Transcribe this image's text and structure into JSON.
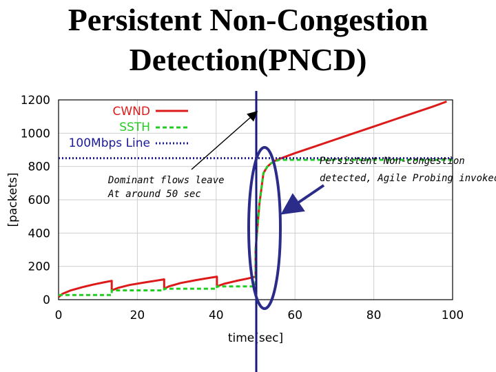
{
  "slide": {
    "title_line1": "Persistent Non-Congestion",
    "title_line2": "Detection(PNCD)"
  },
  "chart_data": {
    "type": "line",
    "xlabel": "time[sec]",
    "ylabel": "[packets]",
    "xlim": [
      0,
      100
    ],
    "ylim": [
      0,
      1200
    ],
    "xticks": [
      0,
      20,
      40,
      60,
      80,
      100
    ],
    "yticks": [
      0,
      200,
      400,
      600,
      800,
      1000,
      1200
    ],
    "grid": true,
    "legend_position": "top-right",
    "series": [
      {
        "name": "CWND",
        "color": "#dd1a1a",
        "x": [
          0,
          1,
          3,
          6,
          9,
          11.5,
          13.5,
          13.5,
          15,
          18,
          22,
          25,
          26.8,
          26.8,
          28,
          31,
          35,
          38,
          40.2,
          40.2,
          42,
          45,
          48,
          50,
          50,
          51,
          52,
          53,
          54,
          55,
          56,
          60,
          65,
          70,
          75,
          80,
          85,
          90,
          95,
          98.5
        ],
        "y": [
          15,
          35,
          55,
          75,
          92,
          104,
          113,
          56,
          70,
          88,
          104,
          115,
          122,
          66,
          80,
          100,
          118,
          130,
          138,
          80,
          95,
          112,
          127,
          138,
          300,
          580,
          760,
          800,
          820,
          835,
          845,
          880,
          920,
          960,
          1000,
          1040,
          1080,
          1120,
          1160,
          1190
        ]
      },
      {
        "name": "SSTH",
        "color": "#22cc22",
        "x": [
          0,
          0.5,
          13.5,
          13.5,
          26.8,
          26.8,
          40.2,
          40.2,
          50,
          50,
          51,
          52,
          53,
          54,
          55,
          56,
          60,
          70,
          80,
          90,
          100
        ],
        "y": [
          28,
          28,
          28,
          56,
          56,
          66,
          66,
          80,
          80,
          300,
          580,
          760,
          800,
          820,
          830,
          840,
          840,
          840,
          840,
          840,
          840
        ]
      },
      {
        "name": "100Mbps Line",
        "color": "#1a1a99",
        "x": [
          0,
          100
        ],
        "y": [
          850,
          850
        ]
      }
    ],
    "annotations": [
      {
        "text_line1": "Dominant flows leave",
        "text_line2": "At around 50 sec"
      },
      {
        "text_line1": "Persistent Non-congestion",
        "text_line2": "detected, Agile Probing invoked"
      }
    ],
    "marker_x": 50
  }
}
